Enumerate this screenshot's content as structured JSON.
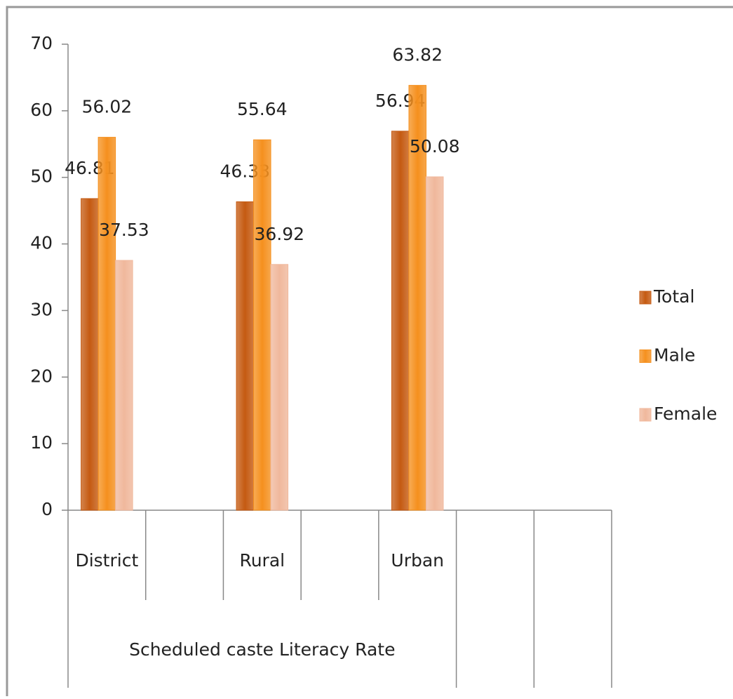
{
  "chart_data": {
    "type": "bar",
    "categories": [
      "District",
      null,
      "Rural",
      null,
      "Urban",
      null,
      null
    ],
    "group_label": "Scheduled caste Literacy Rate",
    "series": [
      {
        "name": "Total",
        "color": "#c55a11",
        "values": [
          46.81,
          null,
          46.33,
          null,
          56.94,
          null,
          null
        ]
      },
      {
        "name": "Male",
        "color": "#f5901e",
        "values": [
          56.02,
          null,
          55.64,
          null,
          63.82,
          null,
          null
        ]
      },
      {
        "name": "Female",
        "color": "#f0b89c",
        "values": [
          37.53,
          null,
          36.92,
          null,
          50.08,
          null,
          null
        ]
      }
    ],
    "ylim": [
      0,
      70
    ],
    "yticks": [
      0,
      10,
      20,
      30,
      40,
      50,
      60,
      70
    ],
    "legend": "right",
    "grid": false
  }
}
